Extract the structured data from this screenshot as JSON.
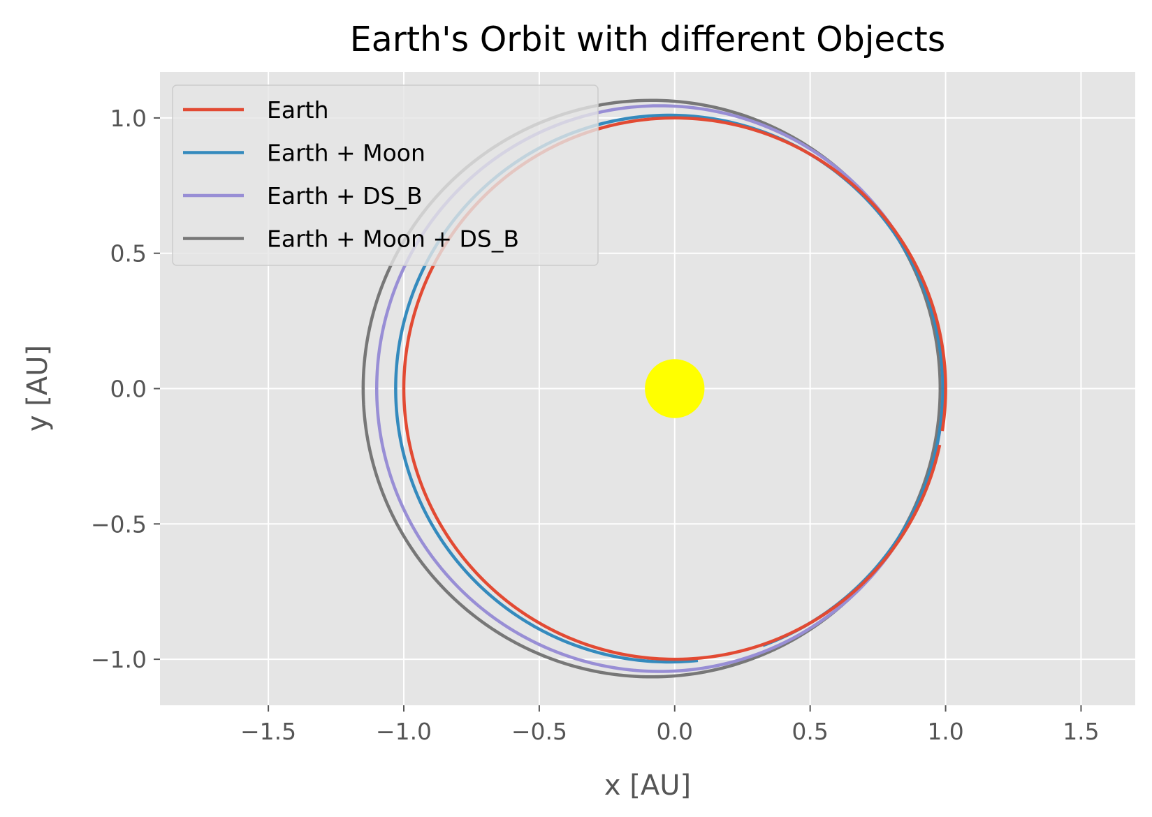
{
  "chart_data": {
    "type": "line",
    "title": "Earth's Orbit with different Objects",
    "xlabel": "x [AU]",
    "ylabel": "y [AU]",
    "xlim": [
      -1.9,
      1.7
    ],
    "ylim": [
      -1.17,
      1.17
    ],
    "xticks": [
      -1.5,
      -1.0,
      -0.5,
      0.0,
      0.5,
      1.0,
      1.5
    ],
    "xtick_labels": [
      "−1.5",
      "−1.0",
      "−0.5",
      "0.0",
      "0.5",
      "1.0",
      "1.5"
    ],
    "yticks": [
      -1.0,
      -0.5,
      0.0,
      0.5,
      1.0
    ],
    "ytick_labels": [
      "−1.0",
      "−0.5",
      "0.0",
      "0.5",
      "1.0"
    ],
    "grid": true,
    "legend_position": "top-left",
    "background": "#e5e5e5",
    "series": [
      {
        "name": "Earth",
        "color": "#e24a33",
        "orbit": {
          "center_x": 0.0,
          "center_y": 0.0,
          "radius_x": 1.0,
          "radius_y": 1.0,
          "start_deg": -9,
          "end_deg": 348
        }
      },
      {
        "name": "Earth + Moon",
        "color": "#348abd",
        "orbit": {
          "center_x": -0.02,
          "center_y": 0.0,
          "radius_x": 1.01,
          "radius_y": 1.01,
          "start_deg": -70,
          "end_deg": 276
        }
      },
      {
        "name": "Earth + DS_B",
        "color": "#988ed5",
        "orbit": {
          "center_x": -0.055,
          "center_y": 0.0,
          "radius_x": 1.045,
          "radius_y": 1.045,
          "start_deg": -95,
          "end_deg": 314
        }
      },
      {
        "name": "Earth + Moon + DS_B",
        "color": "#777777",
        "orbit": {
          "center_x": -0.085,
          "center_y": 0.0,
          "radius_x": 1.065,
          "radius_y": 1.065,
          "start_deg": -110,
          "end_deg": 314
        }
      }
    ],
    "sun": {
      "x": 0.0,
      "y": 0.0,
      "radius": 0.11,
      "color": "#ffff00"
    }
  }
}
